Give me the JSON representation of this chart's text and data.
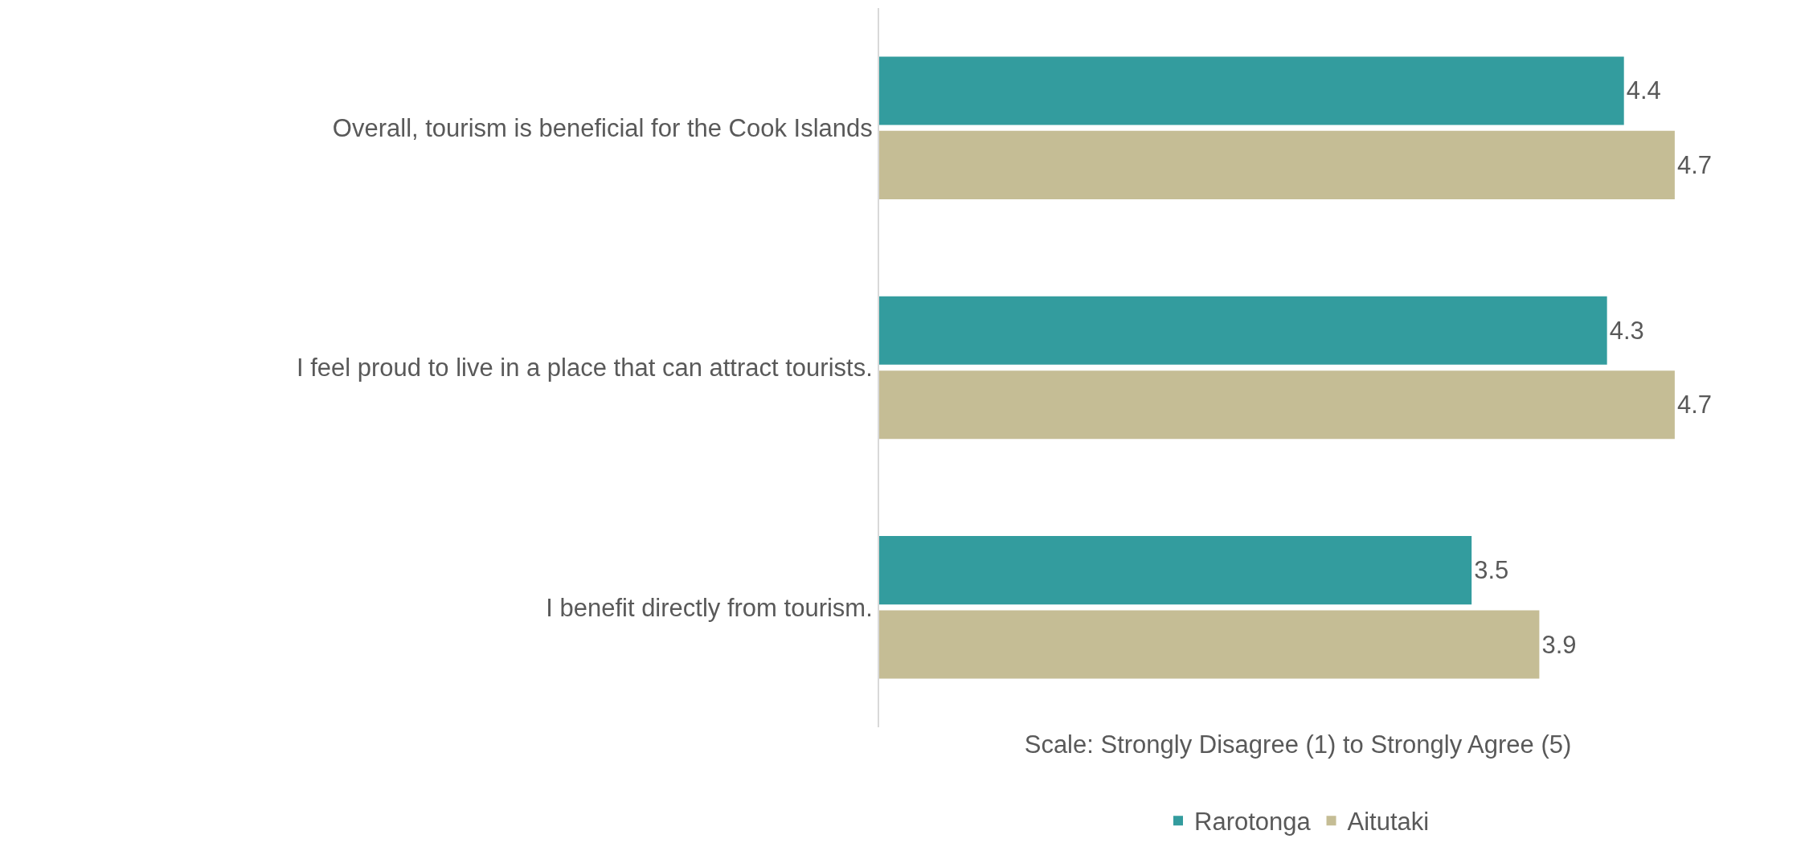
{
  "chart_data": {
    "type": "bar",
    "orientation": "horizontal",
    "xlabel": "Scale: Strongly Disagree (1) to Strongly Agree (5)",
    "categories": [
      "Overall, tourism is beneficial for the Cook Islands",
      "I feel proud to live in a place that can attract tourists.",
      "I benefit directly from tourism."
    ],
    "series": [
      {
        "name": "Rarotonga",
        "color": "#339c9e",
        "values": [
          4.4,
          4.3,
          3.5
        ]
      },
      {
        "name": "Aitutaki",
        "color": "#c5bd95",
        "values": [
          4.7,
          4.7,
          3.9
        ]
      }
    ],
    "data_labels": true,
    "grid": false,
    "legend": "bottom",
    "tick_labels": "y"
  }
}
